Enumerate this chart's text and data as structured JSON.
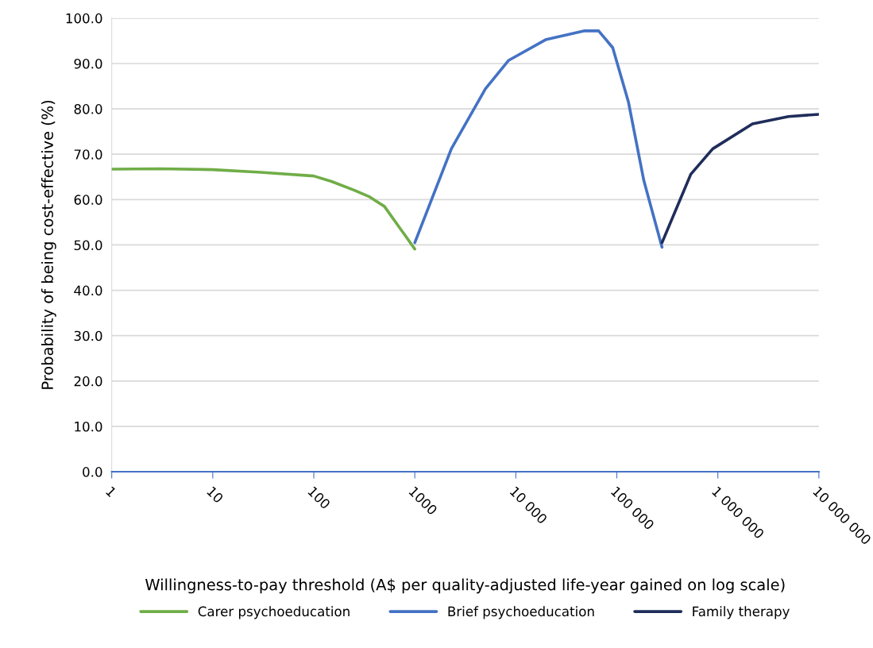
{
  "chart_data": {
    "type": "line",
    "xlabel": "Willingness-to-pay threshold (A$ per quality-adjusted life-year gained on log scale)",
    "ylabel": "Probability of being cost-effective (%)",
    "log": "x",
    "grid": "y",
    "legend": "bottom",
    "marker": "none",
    "line_style": "solid",
    "xlim": [
      1,
      10000000
    ],
    "xticks": [
      1,
      10,
      100,
      {
        "value": 1000,
        "label": "1000"
      },
      {
        "value": 10000,
        "label": "10 000"
      },
      {
        "value": 100000,
        "label": "100 000"
      },
      {
        "value": 1000000,
        "label": "1 000 000"
      },
      {
        "value": 10000000,
        "label": "10 000 000"
      }
    ],
    "ylim": [
      0,
      100
    ],
    "yticks": [
      {
        "value": 0,
        "label": "0.0"
      },
      {
        "value": 10,
        "label": "10.0"
      },
      {
        "value": 20,
        "label": "20.0"
      },
      {
        "value": 30,
        "label": "30.0"
      },
      {
        "value": 40,
        "label": "40.0"
      },
      {
        "value": 50,
        "label": "50.0"
      },
      {
        "value": 60,
        "label": "60.0"
      },
      {
        "value": 70,
        "label": "70.0"
      },
      {
        "value": 80,
        "label": "80.0"
      },
      {
        "value": 90,
        "label": "90.0"
      },
      {
        "value": 100,
        "label": "100.0"
      }
    ],
    "series": [
      {
        "name": "Carer psychoeducation",
        "color": "#70ad47",
        "x": [
          1,
          3,
          10,
          30,
          100,
          150,
          250,
          350,
          500,
          1000
        ],
        "values": [
          66.7,
          66.8,
          66.6,
          66.0,
          65.2,
          64.0,
          62.1,
          60.7,
          58.5,
          49.1
        ]
      },
      {
        "name": "Brief psychoeducation",
        "color": "#4472c4",
        "x": [
          1000,
          2300,
          5000,
          8500,
          20000,
          48000,
          66000,
          91000,
          130000,
          185000,
          280000
        ],
        "values": [
          50.5,
          71.2,
          84.4,
          90.7,
          95.3,
          97.2,
          97.2,
          93.5,
          81.6,
          64.2,
          49.5
        ]
      },
      {
        "name": "Family therapy",
        "color": "#1f2d5a",
        "x": [
          280000,
          540000,
          890000,
          2200000,
          5000000,
          10000000
        ],
        "values": [
          50.5,
          65.6,
          71.2,
          76.7,
          78.3,
          78.8
        ]
      }
    ]
  }
}
